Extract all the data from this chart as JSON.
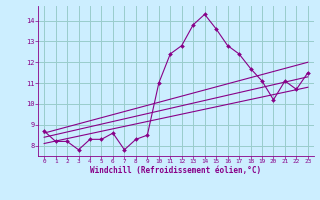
{
  "xlabel": "Windchill (Refroidissement éolien,°C)",
  "bg_color": "#cceeff",
  "line_color": "#880088",
  "grid_color": "#99cccc",
  "xlim": [
    -0.5,
    23.5
  ],
  "ylim": [
    7.5,
    14.7
  ],
  "yticks": [
    8,
    9,
    10,
    11,
    12,
    13,
    14
  ],
  "xticks": [
    0,
    1,
    2,
    3,
    4,
    5,
    6,
    7,
    8,
    9,
    10,
    11,
    12,
    13,
    14,
    15,
    16,
    17,
    18,
    19,
    20,
    21,
    22,
    23
  ],
  "main_line": {
    "x": [
      0,
      1,
      2,
      3,
      4,
      5,
      6,
      7,
      8,
      9,
      10,
      11,
      12,
      13,
      14,
      15,
      16,
      17,
      18,
      19,
      20,
      21,
      22,
      23
    ],
    "y": [
      8.7,
      8.2,
      8.2,
      7.8,
      8.3,
      8.3,
      8.6,
      7.8,
      8.3,
      8.5,
      11.0,
      12.4,
      12.8,
      13.8,
      14.3,
      13.6,
      12.8,
      12.4,
      11.7,
      11.1,
      10.2,
      11.1,
      10.7,
      11.5
    ]
  },
  "straight_lines": [
    {
      "x": [
        0,
        23
      ],
      "y": [
        8.6,
        12.0
      ]
    },
    {
      "x": [
        0,
        23
      ],
      "y": [
        8.4,
        11.3
      ]
    },
    {
      "x": [
        0,
        23
      ],
      "y": [
        8.1,
        10.8
      ]
    }
  ]
}
